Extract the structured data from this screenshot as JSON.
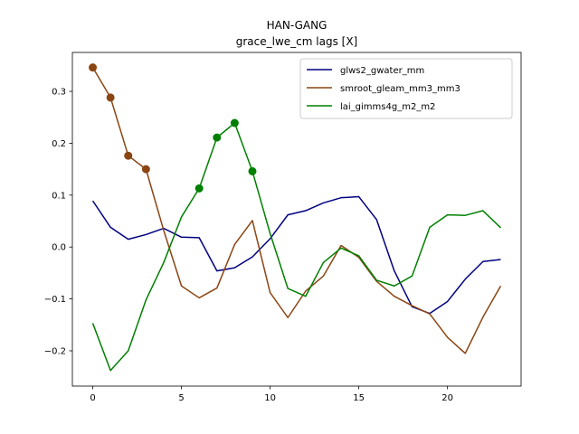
{
  "chart_data": {
    "type": "line",
    "title": "HAN-GANG",
    "subtitle": "grace_lwe_cm lags [X]",
    "xlabel": "",
    "ylabel": "",
    "xlim": [
      -1.15,
      24.15
    ],
    "ylim": [
      -0.268,
      0.375
    ],
    "xticks": [
      0,
      5,
      10,
      15,
      20
    ],
    "yticks": [
      -0.2,
      -0.1,
      0.0,
      0.1,
      0.2,
      0.3
    ],
    "ytick_labels": [
      "−0.2",
      "−0.1",
      "0.0",
      "0.1",
      "0.2",
      "0.3"
    ],
    "legend_position": "top-right",
    "x": [
      0,
      1,
      2,
      3,
      4,
      5,
      6,
      7,
      8,
      9,
      10,
      11,
      12,
      13,
      14,
      15,
      16,
      17,
      18,
      19,
      20,
      21,
      22,
      23
    ],
    "series": [
      {
        "name": "glws2_gwater_mm",
        "color": "#000080",
        "values": [
          0.089,
          0.038,
          0.015,
          0.024,
          0.036,
          0.019,
          0.018,
          -0.046,
          -0.04,
          -0.019,
          0.016,
          0.062,
          0.07,
          0.085,
          0.095,
          0.097,
          0.053,
          -0.046,
          -0.115,
          -0.128,
          -0.105,
          -0.062,
          -0.028,
          -0.024
        ],
        "highlight_indices": []
      },
      {
        "name": "smroot_gleam_mm3_mm3",
        "color": "#8B4513",
        "values": [
          0.346,
          0.288,
          0.176,
          0.15,
          0.032,
          -0.075,
          -0.098,
          -0.079,
          0.005,
          0.051,
          -0.088,
          -0.136,
          -0.085,
          -0.056,
          0.003,
          -0.02,
          -0.066,
          -0.095,
          -0.113,
          -0.129,
          -0.174,
          -0.205,
          -0.135,
          -0.075
        ],
        "highlight_indices": [
          0,
          1,
          2,
          3
        ]
      },
      {
        "name": "lai_gimms4g_m2_m2",
        "color": "#008000",
        "values": [
          -0.147,
          -0.238,
          -0.2,
          -0.102,
          -0.03,
          0.058,
          0.113,
          0.211,
          0.239,
          0.146,
          0.026,
          -0.08,
          -0.095,
          -0.03,
          -0.002,
          -0.017,
          -0.064,
          -0.075,
          -0.056,
          0.038,
          0.062,
          0.061,
          0.07,
          0.037
        ],
        "highlight_indices": [
          6,
          7,
          8,
          9
        ]
      }
    ]
  }
}
